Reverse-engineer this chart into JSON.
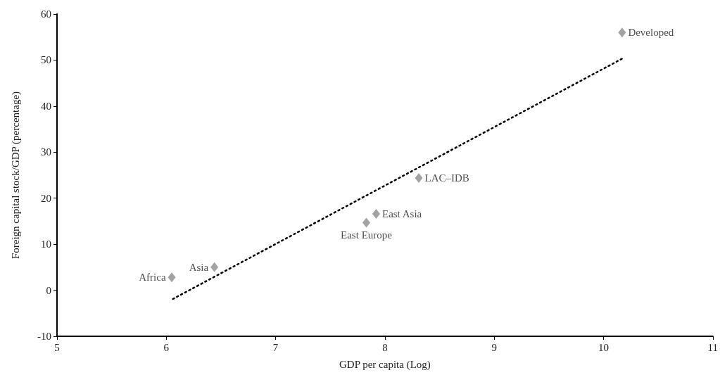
{
  "chart_data": {
    "type": "scatter",
    "xlabel": "GDP per capita (Log)",
    "ylabel": "Foreign capital stock/GDP (percentage)",
    "xlim": [
      5,
      11
    ],
    "xticks": [
      5,
      6,
      7,
      8,
      9,
      10,
      11
    ],
    "ylim": [
      -10,
      60
    ],
    "yticks": [
      -10,
      0,
      10,
      20,
      30,
      40,
      50,
      60
    ],
    "grid": false,
    "series": [
      {
        "type": "scatter",
        "color": "#8c8c8c",
        "marker": "diamond",
        "x": [
          6.05,
          6.44,
          7.83,
          7.92,
          8.31,
          10.17
        ],
        "values": [
          2.8,
          5.0,
          14.7,
          16.6,
          24.4,
          56.0
        ],
        "value_labels": [
          "Africa",
          "Asia",
          "East Europe",
          "East Asia",
          "LAC–IDB",
          "Developed"
        ]
      },
      {
        "type": "line",
        "color": "#000000",
        "marker": "none",
        "line_style": "dotted",
        "x": [
          6.06,
          10.17
        ],
        "values": [
          -1.9,
          50.3
        ]
      }
    ]
  }
}
